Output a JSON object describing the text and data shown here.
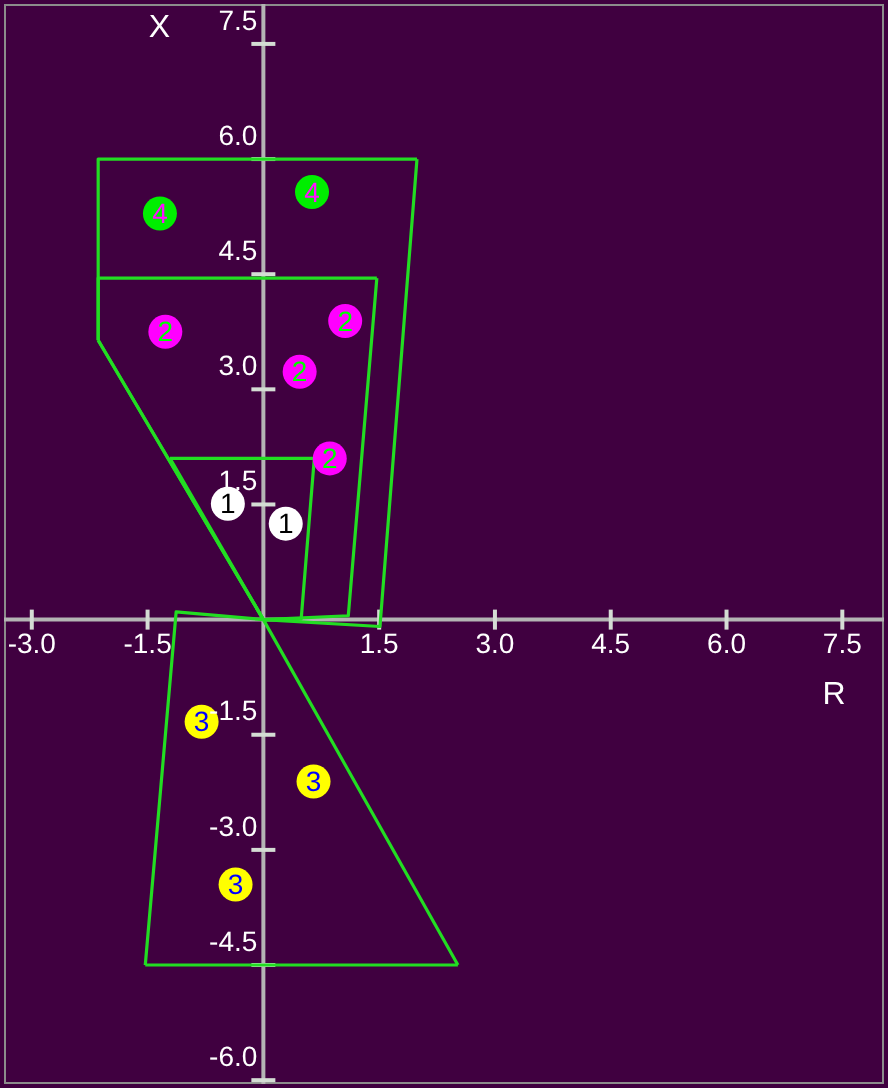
{
  "chart_data": {
    "type": "scatter",
    "xlabel": "R",
    "ylabel": "X",
    "xlim": [
      -3.36,
      8.04
    ],
    "ylim": [
      -6.05,
      8.02
    ],
    "xticks": [
      {
        "value": -3,
        "label": "-3.0"
      },
      {
        "value": -1.5,
        "label": "-1.5"
      },
      {
        "value": 1.5,
        "label": "1.5"
      },
      {
        "value": 3,
        "label": "3.0"
      },
      {
        "value": 4.5,
        "label": "4.5"
      },
      {
        "value": 6,
        "label": "6.0"
      },
      {
        "value": 7.5,
        "label": "7.5"
      }
    ],
    "yticks": [
      {
        "value": -6,
        "label": "-6.0"
      },
      {
        "value": -4.5,
        "label": "-4.5"
      },
      {
        "value": -3,
        "label": "-3.0"
      },
      {
        "value": -1.5,
        "label": "-1.5"
      },
      {
        "value": 1.5,
        "label": "1.5"
      },
      {
        "value": 3,
        "label": "3.0"
      },
      {
        "value": 4.5,
        "label": "4.5"
      },
      {
        "value": 6,
        "label": "6.0"
      },
      {
        "value": 7.5,
        "label": "7.5"
      }
    ],
    "marker": "circle",
    "series": [
      {
        "type": "line",
        "marker": "none",
        "color": "#22dd22",
        "x": [
          -2.14,
          -2.14,
          1.99
        ],
        "values": [
          3.64,
          6.0,
          6.0
        ]
      },
      {
        "type": "line",
        "marker": "none",
        "color": "#22dd22",
        "x": [
          -2.14,
          0,
          1.51,
          1.99
        ],
        "values": [
          3.64,
          0,
          -0.09,
          6.0
        ]
      },
      {
        "type": "line",
        "marker": "none",
        "color": "#22dd22",
        "x": [
          -2.14,
          -2.14,
          1.47
        ],
        "values": [
          3.64,
          4.45,
          4.45
        ]
      },
      {
        "type": "line",
        "marker": "none",
        "color": "#22dd22",
        "x": [
          -2.14,
          0,
          1.1,
          1.47
        ],
        "values": [
          3.64,
          0,
          0.05,
          4.45
        ]
      },
      {
        "type": "line",
        "marker": "none",
        "color": "#22dd22",
        "x": [
          -1.21,
          0.66
        ],
        "values": [
          2.1,
          2.1
        ]
      },
      {
        "type": "line",
        "marker": "none",
        "color": "#22dd22",
        "x": [
          -1.21,
          0,
          0.49,
          0.66
        ],
        "values": [
          2.1,
          0,
          0.01,
          2.1
        ]
      },
      {
        "type": "line",
        "marker": "none",
        "color": "#22dd22",
        "x": [
          -1.53,
          -1.13,
          0,
          2.52
        ],
        "values": [
          -4.5,
          0.1,
          0,
          -4.5
        ]
      },
      {
        "type": "line",
        "marker": "none",
        "color": "#22dd22",
        "x": [
          -1.53,
          2.52
        ],
        "values": [
          -4.5,
          -4.5
        ]
      },
      {
        "name": "1",
        "color": "#ffffff",
        "x": [
          -0.46,
          0.29
        ],
        "values": [
          1.51,
          1.25
        ]
      },
      {
        "name": "2",
        "color": "#ff00ff",
        "x": [
          -1.27,
          1.06,
          0.47,
          0.86
        ],
        "values": [
          3.75,
          3.89,
          3.23,
          2.1
        ]
      },
      {
        "name": "3",
        "color": "#ffff00",
        "x": [
          -0.8,
          0.65,
          -0.36
        ],
        "values": [
          -1.33,
          -2.11,
          -3.45
        ]
      },
      {
        "name": "4",
        "color": "#00ee00",
        "x": [
          -1.34,
          0.63
        ],
        "values": [
          5.29,
          5.57
        ]
      }
    ]
  }
}
